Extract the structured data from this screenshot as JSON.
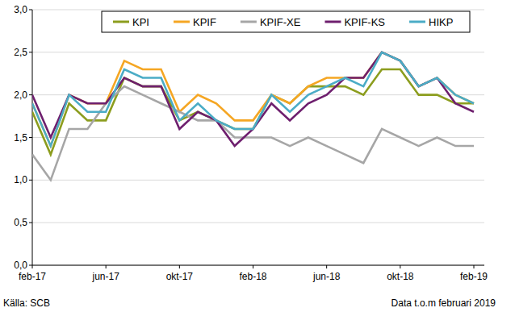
{
  "chart_data": {
    "type": "line",
    "categories": [
      "feb-17",
      null,
      null,
      null,
      "jun-17",
      null,
      null,
      null,
      "okt-17",
      null,
      null,
      null,
      "feb-18",
      null,
      null,
      null,
      "jun-18",
      null,
      null,
      null,
      "okt-18",
      null,
      null,
      null,
      "feb-19"
    ],
    "series": [
      {
        "name": "KPI",
        "color": "#8c9d1e",
        "values": [
          1.8,
          1.3,
          1.9,
          1.7,
          1.7,
          2.2,
          2.1,
          2.1,
          1.7,
          1.8,
          1.7,
          1.6,
          1.6,
          2.0,
          1.9,
          2.1,
          2.1,
          2.1,
          2.0,
          2.3,
          2.3,
          2.0,
          2.0,
          1.9,
          1.9
        ]
      },
      {
        "name": "KPIF",
        "color": "#f5a623",
        "values": [
          1.9,
          1.4,
          2.0,
          1.9,
          1.9,
          2.4,
          2.3,
          2.3,
          1.8,
          2.0,
          1.9,
          1.7,
          1.7,
          2.0,
          1.9,
          2.1,
          2.2,
          2.2,
          2.2,
          2.5,
          2.4,
          2.1,
          2.2,
          2.0,
          1.9
        ]
      },
      {
        "name": "KPIF-XE",
        "color": "#a6a6a6",
        "values": [
          1.3,
          1.0,
          1.6,
          1.6,
          1.9,
          2.1,
          2.0,
          1.9,
          1.8,
          1.7,
          1.7,
          1.5,
          1.5,
          1.5,
          1.4,
          1.5,
          1.4,
          1.3,
          1.2,
          1.6,
          1.5,
          1.4,
          1.5,
          1.4,
          1.4
        ]
      },
      {
        "name": "KPIF-KS",
        "color": "#6e1f6e",
        "values": [
          2.0,
          1.5,
          2.0,
          1.9,
          1.9,
          2.2,
          2.1,
          2.1,
          1.6,
          1.8,
          1.7,
          1.4,
          1.6,
          1.9,
          1.7,
          1.9,
          2.0,
          2.2,
          2.2,
          2.5,
          2.4,
          2.1,
          2.2,
          1.9,
          1.8
        ]
      },
      {
        "name": "HIKP",
        "color": "#4bacc6",
        "values": [
          1.9,
          1.4,
          2.0,
          1.8,
          1.8,
          2.3,
          2.2,
          2.2,
          1.7,
          1.9,
          1.7,
          1.6,
          1.6,
          2.0,
          1.8,
          2.0,
          2.1,
          2.2,
          2.1,
          2.5,
          2.4,
          2.1,
          2.2,
          2.0,
          1.9
        ]
      }
    ],
    "ylim": [
      0,
      3
    ],
    "yticks": [
      {
        "value": 0,
        "label": "0,0"
      },
      {
        "value": 0.5,
        "label": "0,5"
      },
      {
        "value": 1,
        "label": "1,0"
      },
      {
        "value": 1.5,
        "label": "1,5"
      },
      {
        "value": 2,
        "label": "2,0"
      },
      {
        "value": 2.5,
        "label": "2,5"
      },
      {
        "value": 3,
        "label": "3,0"
      }
    ],
    "grid": true,
    "legend": "top",
    "annotations": [
      "Källa: SCB",
      "Data t.o.m februari 2019"
    ]
  }
}
